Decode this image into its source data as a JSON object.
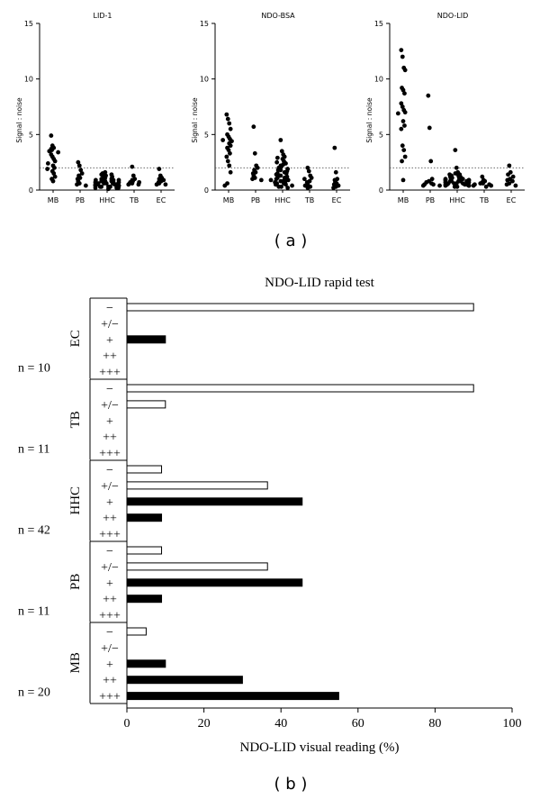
{
  "panel_labels": {
    "a": "( a )",
    "b": "( b )"
  },
  "panel_a": {
    "ylabel": "Signal : noise",
    "categories": [
      "MB",
      "PB",
      "HHC",
      "TB",
      "EC"
    ]
  },
  "panel_b": {
    "title": "NDO-LID rapid test",
    "xlabel": "NDO-LID visual reading (%)",
    "readings": [
      "−",
      "+/−",
      "+",
      "++",
      "+++"
    ]
  },
  "chart_data": [
    {
      "type": "scatter",
      "title": "LID-1",
      "ylabel": "Signal : noise",
      "ylim": [
        0,
        15
      ],
      "yticks": [
        0,
        5,
        10,
        15
      ],
      "cutoff": 2,
      "categories": [
        "MB",
        "PB",
        "HHC",
        "TB",
        "EC"
      ],
      "points": {
        "MB": [
          4.9,
          4.0,
          3.8,
          3.7,
          3.6,
          3.5,
          3.4,
          3.2,
          3.0,
          2.8,
          2.6,
          2.4,
          2.2,
          2.0,
          1.9,
          1.7,
          1.5,
          1.2,
          1.0,
          0.8
        ],
        "PB": [
          2.5,
          2.2,
          1.8,
          1.5,
          1.3,
          1.1,
          1.0,
          0.8,
          0.6,
          0.5,
          0.4
        ],
        "HHC": [
          1.6,
          1.5,
          1.4,
          1.4,
          1.3,
          1.2,
          1.2,
          1.1,
          1.0,
          1.0,
          1.0,
          0.9,
          0.9,
          0.9,
          0.8,
          0.8,
          0.8,
          0.8,
          0.7,
          0.7,
          0.7,
          0.7,
          0.6,
          0.6,
          0.6,
          0.6,
          0.5,
          0.5,
          0.5,
          0.5,
          0.4,
          0.4,
          0.4,
          0.4,
          0.3,
          0.3,
          0.3,
          0.3,
          0.2,
          0.2,
          0.2,
          0.1
        ],
        "TB": [
          2.1,
          1.3,
          1.0,
          0.9,
          0.8,
          0.7,
          0.7,
          0.6,
          0.6,
          0.5,
          0.5
        ],
        "EC": [
          1.9,
          1.3,
          1.1,
          1.0,
          0.9,
          0.8,
          0.7,
          0.6,
          0.5,
          0.5
        ]
      }
    },
    {
      "type": "scatter",
      "title": "NDO-BSA",
      "ylabel": "Signal : noise",
      "ylim": [
        0,
        15
      ],
      "yticks": [
        0,
        5,
        10,
        15
      ],
      "cutoff": 2,
      "categories": [
        "MB",
        "PB",
        "HHC",
        "TB",
        "EC"
      ],
      "points": {
        "MB": [
          6.8,
          6.4,
          6.0,
          5.5,
          5.0,
          4.8,
          4.6,
          4.5,
          4.4,
          4.2,
          4.0,
          3.8,
          3.6,
          3.3,
          3.0,
          2.6,
          2.2,
          1.6,
          0.6,
          0.4
        ],
        "PB": [
          5.7,
          3.3,
          2.2,
          2.0,
          1.8,
          1.6,
          1.5,
          1.3,
          1.1,
          1.0,
          0.9
        ],
        "HHC": [
          4.5,
          3.5,
          3.2,
          3.0,
          2.9,
          2.8,
          2.6,
          2.5,
          2.4,
          2.3,
          2.2,
          2.1,
          2.0,
          1.9,
          1.8,
          1.8,
          1.7,
          1.6,
          1.5,
          1.5,
          1.4,
          1.3,
          1.3,
          1.2,
          1.1,
          1.1,
          1.0,
          1.0,
          0.9,
          0.9,
          0.8,
          0.8,
          0.7,
          0.7,
          0.6,
          0.6,
          0.5,
          0.5,
          0.4,
          0.3,
          0.3,
          0.2
        ],
        "TB": [
          2.0,
          1.7,
          1.3,
          1.1,
          1.0,
          0.8,
          0.7,
          0.5,
          0.4,
          0.3,
          0.2
        ],
        "EC": [
          3.8,
          1.6,
          1.0,
          0.9,
          0.7,
          0.6,
          0.5,
          0.4,
          0.3,
          0.2
        ]
      }
    },
    {
      "type": "scatter",
      "title": "NDO-LID",
      "ylabel": "Signal : noise",
      "ylim": [
        0,
        15
      ],
      "yticks": [
        0,
        5,
        10,
        15
      ],
      "cutoff": 2,
      "categories": [
        "MB",
        "PB",
        "HHC",
        "TB",
        "EC"
      ],
      "points": {
        "MB": [
          12.6,
          12.0,
          11.0,
          10.8,
          9.2,
          9.0,
          8.7,
          7.8,
          7.5,
          7.2,
          7.0,
          6.9,
          6.2,
          5.8,
          5.5,
          4.0,
          3.6,
          3.0,
          2.6,
          0.9
        ],
        "PB": [
          8.5,
          5.6,
          2.6,
          1.0,
          0.8,
          0.7,
          0.6,
          0.5,
          0.5,
          0.4,
          0.4
        ],
        "HHC": [
          3.6,
          2.0,
          1.6,
          1.5,
          1.4,
          1.4,
          1.3,
          1.3,
          1.2,
          1.2,
          1.1,
          1.1,
          1.1,
          1.0,
          1.0,
          1.0,
          0.9,
          0.9,
          0.9,
          0.9,
          0.8,
          0.8,
          0.8,
          0.8,
          0.8,
          0.7,
          0.7,
          0.7,
          0.7,
          0.6,
          0.6,
          0.6,
          0.6,
          0.5,
          0.5,
          0.5,
          0.5,
          0.4,
          0.4,
          0.4,
          0.3,
          0.3
        ],
        "TB": [
          1.2,
          0.9,
          0.8,
          0.7,
          0.6,
          0.6,
          0.5,
          0.5,
          0.4,
          0.4,
          0.3
        ],
        "EC": [
          2.2,
          1.6,
          1.4,
          1.2,
          1.0,
          0.9,
          0.8,
          0.6,
          0.5,
          0.4
        ]
      }
    },
    {
      "type": "bar",
      "orientation": "horizontal",
      "title": "NDO-LID rapid test",
      "xlabel": "NDO-LID visual reading (%)",
      "xlim": [
        0,
        100
      ],
      "xticks": [
        0,
        20,
        40,
        60,
        80,
        100
      ],
      "readings": [
        "−",
        "+/−",
        "+",
        "++",
        "+++"
      ],
      "groups": [
        {
          "name": "EC",
          "n_label": "n = 10",
          "values": [
            90,
            0,
            10,
            0,
            0
          ]
        },
        {
          "name": "TB",
          "n_label": "n = 11",
          "values": [
            90,
            10,
            0,
            0,
            0
          ]
        },
        {
          "name": "HHC",
          "n_label": "n = 42",
          "values": [
            9,
            36.5,
            45.5,
            9,
            0
          ]
        },
        {
          "name": "PB",
          "n_label": "n = 11",
          "values": [
            9,
            36.5,
            45.5,
            9,
            0
          ]
        },
        {
          "name": "MB",
          "n_label": "n = 20",
          "values": [
            5,
            0,
            10,
            30,
            55
          ]
        }
      ],
      "bar_fill": {
        "−": "#ffffff",
        "+/−": "#ffffff",
        "+": "#000000",
        "++": "#000000",
        "+++": "#000000"
      }
    }
  ]
}
